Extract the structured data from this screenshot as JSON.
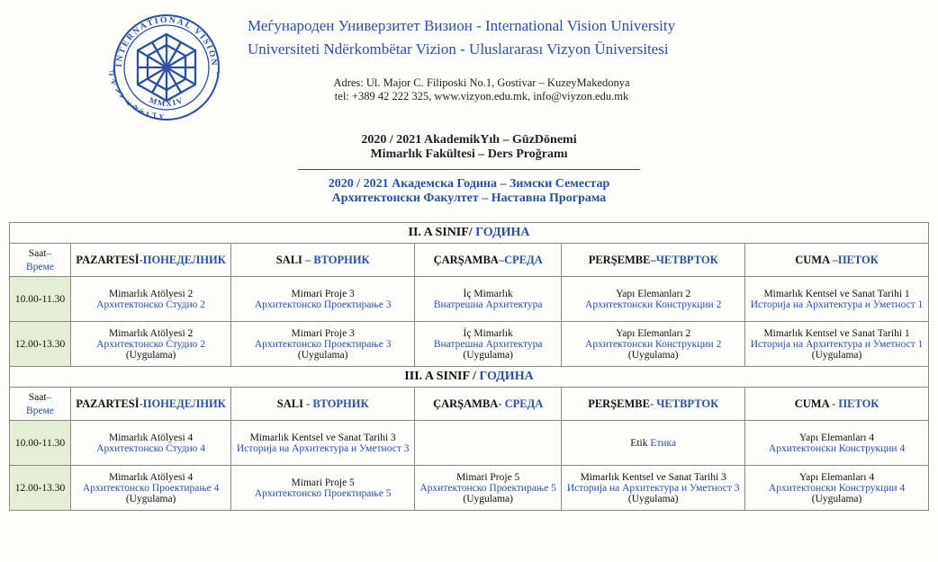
{
  "header": {
    "logo_text_top": "INTERNATIONAL VISION",
    "logo_text_left": "UNIVERSITY",
    "logo_year": "MMXIV",
    "logo_color": "#2d4fa0",
    "uni_line1": "Меѓународен Универзитет Визион - International Vision University",
    "uni_line2": "Universiteti Ndërkombëtar Vizion - Uluslararası Vizyon Üniversitesi",
    "addr_line1": "Adres: Ul. Major C. Filiposki No.1, Gostivar – KuzeyMakedonya",
    "addr_line2": "tel: +389 42 222 325, www.vizyon.edu.mk,  info@viyzon.edu.mk"
  },
  "program": {
    "tr_line1": "2020 / 2021 AkademikYılı – GüzDönemi",
    "tr_line2": "Mimarlık Fakültesi – Ders Proğramı",
    "mk_line1": "2020 / 2021 Академска Година – Зимски Семестар",
    "mk_line2": "Архитектонски Факултет – Наставна Програма"
  },
  "labels": {
    "saat_tr": "Saat",
    "saat_sep": "– ",
    "saat_mk": "Време"
  },
  "days": {
    "mon_tr": "PAZARTESİ",
    "mon_mk": "-ПОНЕДЕЛНИК",
    "tue_tr": "SALI",
    "tue_sep2": " – ",
    "tue_mk2": "ВТОРНИК",
    "tue_sep3": " - ",
    "tue_mk3": "ВТОРНИК",
    "wed_tr": "ÇARŞAMBA",
    "wed_sep2": "–",
    "wed_mk2": "СРЕДА",
    "wed_sep3": "- ",
    "wed_mk3": "СРЕДА",
    "thu_tr": "PERŞEMBE",
    "thu_sep2": "–",
    "thu_mk2": "ЧЕТВРТОК",
    "thu_sep3": "- ",
    "thu_mk3": "ЧЕТВРТОК",
    "fri_tr": "CUMA",
    "fri_sep2": " –",
    "fri_mk2": "ПЕТОК",
    "fri_sep3": " - ",
    "fri_mk3": "ПЕТОК"
  },
  "grades": [
    {
      "title_tr": "II. A SINIF/ ",
      "title_mk": "ГОДИНА",
      "rows": [
        {
          "time": "10.00-11.30",
          "cells": [
            {
              "tr": "Mimarlık Atölyesi 2",
              "mk": "Архитектонско Студио 2"
            },
            {
              "tr": "Mimari Proje 3",
              "mk": "Архитектонско Проектирање 3"
            },
            {
              "tr": "İç Mimarlık",
              "mk": "Внатрешна Архитектура"
            },
            {
              "tr": "Yapı Elemanları 2",
              "mk": "Архитектонски Конструкции 2"
            },
            {
              "tr": "Mimarlık Kentsel ve Sanat Tarihi 1",
              "mk": "Историја на Архитектура и Уметност 1"
            }
          ]
        },
        {
          "time": "12.00-13.30",
          "cells": [
            {
              "tr": "Mimarlık Atölyesi 2",
              "mk": "Архитектонско Студио 2",
              "ug": "(Uygulama)"
            },
            {
              "tr": "Mimari Proje 3",
              "mk": "Архитектонско Проектирање 3",
              "ug": "(Uygulama)"
            },
            {
              "tr": "İç Mimarlık",
              "mk": "Внатрешна Архитектура",
              "ug": "(Uygulama)"
            },
            {
              "tr": "Yapı Elemanları 2",
              "mk": "Архитектонски Конструкции 2",
              "ug": "(Uygulama)"
            },
            {
              "tr": "Mimarlık Kentsel ve Sanat Tarihi 1",
              "mk": "Историја на Архитектура и Уметност 1",
              "ug": "(Uygulama)"
            }
          ]
        }
      ]
    },
    {
      "title_tr": "III.  A  SINIF / ",
      "title_mk": "ГОДИНА",
      "rows": [
        {
          "time": "10.00-11.30",
          "cells": [
            {
              "tr": "Mimarlık Atölyesi 4",
              "mk": "Архитектонско Студио 4"
            },
            {
              "tr": "Mimarlık Kentsel ve Sanat Tarihi 3",
              "mk": "Историја на Архитектура и Уметност 3"
            },
            {
              "tr": "",
              "mk": ""
            },
            {
              "tr": "Etik ",
              "mk": "Етика",
              "inline": true
            },
            {
              "tr": "Yapı Elemanları 4",
              "mk": "Архитектонски Конструкции 4"
            }
          ]
        },
        {
          "time": "12.00-13.30",
          "cells": [
            {
              "tr": "Mimarlık Atölyesi 4",
              "mk": "Архитектонско Проектирање 4",
              "ug": "(Uygulama)"
            },
            {
              "tr": "Mimari Proje 5",
              "mk": "Архитектонско Проектирање 5"
            },
            {
              "tr": "Mimari Proje 5",
              "mk": "Архитектонско Проектирање 5",
              "ug": "(Uygulama)"
            },
            {
              "tr": "Mimarlık Kentsel ve Sanat Tarihi 3",
              "mk": "Историја на Архитектура и Уметност 3",
              "ug": "(Uygulama)"
            },
            {
              "tr": "Yapı Elemanları 4",
              "mk": "Архитектонски Конструкции 4",
              "ug": "(Uygulama)"
            }
          ]
        }
      ]
    }
  ],
  "columns_widths": [
    "68px",
    "195px",
    "195px",
    "195px",
    "195px",
    "195px"
  ]
}
